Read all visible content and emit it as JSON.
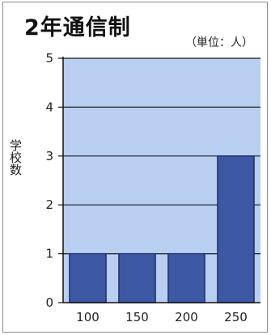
{
  "chart_data": {
    "type": "bar",
    "title": "2年通信制",
    "unit_note": "（単位：人）",
    "ylabel": "学校数",
    "xlabel": "",
    "categories": [
      "100",
      "150",
      "200",
      "250"
    ],
    "values": [
      1,
      1,
      1,
      3
    ],
    "ylim": [
      0,
      5
    ],
    "yticks": [
      "0",
      "1",
      "2",
      "3",
      "4",
      "5"
    ],
    "grid": true,
    "legend": "none",
    "colors": {
      "bar": "#3e59a3",
      "bar_edge": "#1e2f6e",
      "plot_bg": "#b9cff1",
      "grid": "#1a1a1a"
    }
  }
}
